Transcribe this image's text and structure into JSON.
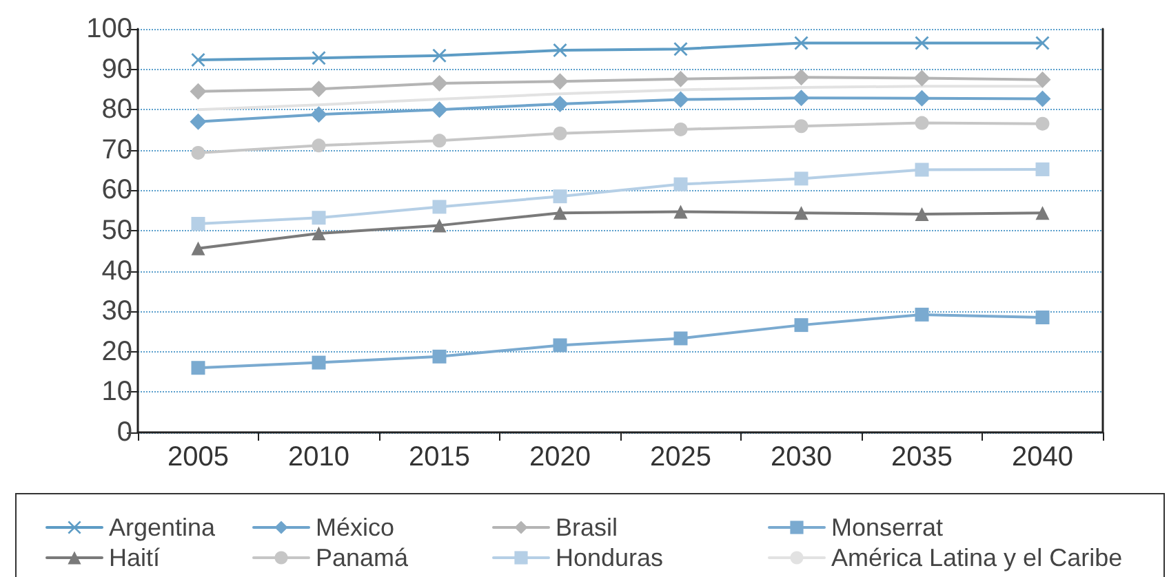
{
  "chart_data": {
    "type": "line",
    "categories": [
      "2005",
      "2010",
      "2015",
      "2020",
      "2025",
      "2030",
      "2035",
      "2040"
    ],
    "ylim": [
      0,
      100
    ],
    "yticks": [
      0,
      10,
      20,
      30,
      40,
      50,
      60,
      70,
      80,
      90,
      100
    ],
    "grid": "y",
    "legend": "bottom",
    "line_style": "solid",
    "series": [
      {
        "name": "Argentina",
        "color": "#5d9cc5",
        "marker": "cross",
        "values": [
          92.3,
          92.8,
          93.4,
          94.7,
          95.0,
          96.5,
          96.5,
          96.5
        ]
      },
      {
        "name": "México",
        "color": "#6ea4cc",
        "marker": "diamond",
        "values": [
          77.0,
          78.8,
          80.0,
          81.4,
          82.5,
          82.9,
          82.8,
          82.7
        ]
      },
      {
        "name": "Brasil",
        "color": "#b4b4b4",
        "marker": "diamond",
        "values": [
          84.5,
          85.1,
          86.5,
          87.0,
          87.6,
          88.0,
          87.8,
          87.4
        ]
      },
      {
        "name": "Monserrat",
        "color": "#7aaad0",
        "marker": "square",
        "values": [
          16.0,
          17.3,
          18.8,
          21.6,
          23.3,
          26.6,
          29.2,
          28.5
        ]
      },
      {
        "name": "Haití",
        "color": "#7a7a7a",
        "marker": "triangle",
        "values": [
          45.6,
          49.3,
          51.3,
          54.4,
          54.7,
          54.4,
          54.1,
          54.4
        ]
      },
      {
        "name": "Panamá",
        "color": "#c6c6c6",
        "marker": "circle",
        "values": [
          69.3,
          71.1,
          72.3,
          74.1,
          75.1,
          75.9,
          76.7,
          76.5
        ]
      },
      {
        "name": "Honduras",
        "color": "#b5cfe6",
        "marker": "square",
        "values": [
          51.7,
          53.2,
          55.9,
          58.5,
          61.5,
          62.9,
          65.1,
          65.2
        ]
      },
      {
        "name": "América Latina y el Caribe",
        "color": "#e2e2e2",
        "marker": "none",
        "values": [
          80.0,
          81.2,
          82.6,
          83.9,
          84.9,
          85.5,
          85.8,
          85.8
        ]
      }
    ]
  }
}
